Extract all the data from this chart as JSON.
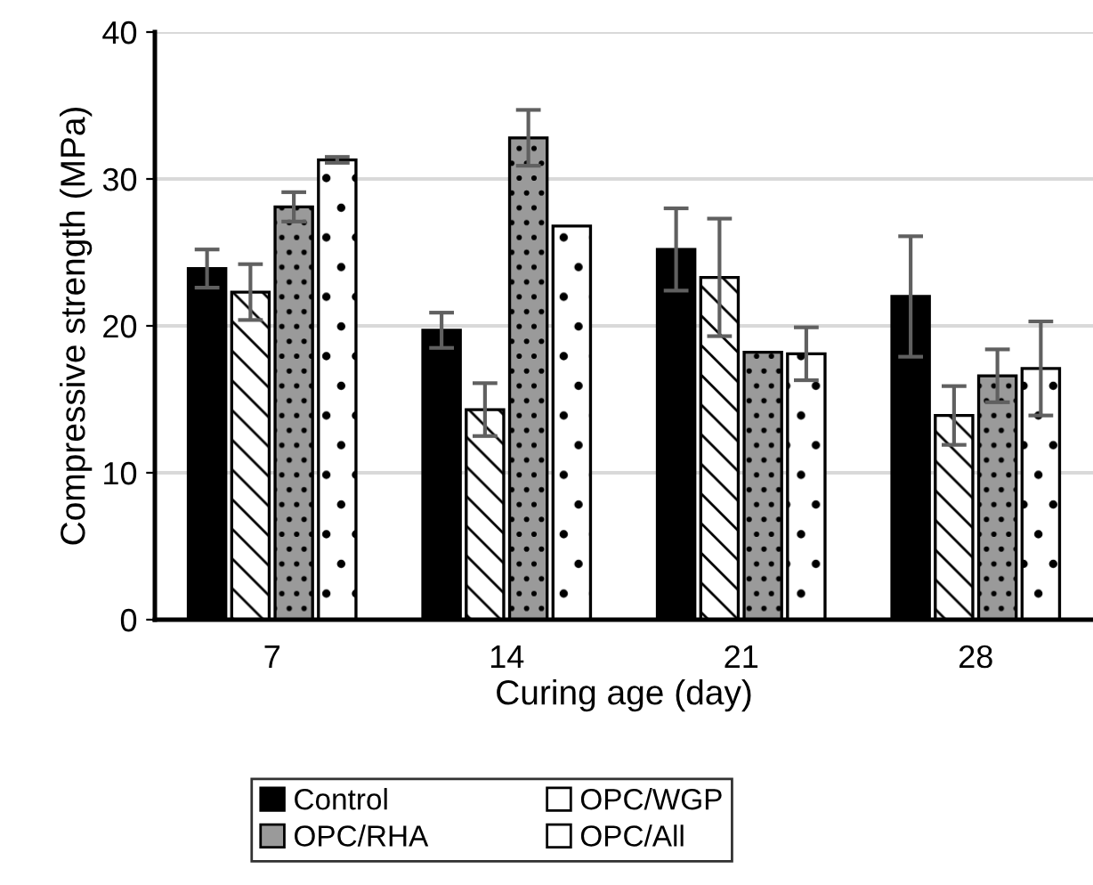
{
  "chart_data": {
    "type": "bar",
    "xlabel": "Curing age (day)",
    "ylabel": "Compressive strength (MPa)",
    "categories": [
      "7",
      "14",
      "21",
      "28"
    ],
    "series": [
      {
        "name": "Control",
        "color": "#000000",
        "values": [
          23.9,
          19.7,
          25.2,
          22.0
        ],
        "errors": [
          1.3,
          1.2,
          2.8,
          4.1
        ]
      },
      {
        "name": "OPC/WGP",
        "color": "#ffffff",
        "values": [
          22.3,
          14.3,
          23.3,
          13.9
        ],
        "errors": [
          1.9,
          1.8,
          4.0,
          2.0
        ]
      },
      {
        "name": "OPC/RHA",
        "color": "#9a9a9a",
        "values": [
          28.1,
          32.8,
          18.2,
          16.6
        ],
        "errors": [
          1.0,
          1.9,
          null,
          1.8
        ]
      },
      {
        "name": "OPC/All",
        "color": "#ffffff",
        "values": [
          31.3,
          26.8,
          18.1,
          17.1
        ],
        "errors": [
          0.2,
          null,
          1.8,
          3.2
        ]
      }
    ],
    "ylim": [
      0,
      40
    ],
    "yticks": [
      0,
      10,
      20,
      30,
      40
    ],
    "grid": "y",
    "legend": "bottom"
  }
}
